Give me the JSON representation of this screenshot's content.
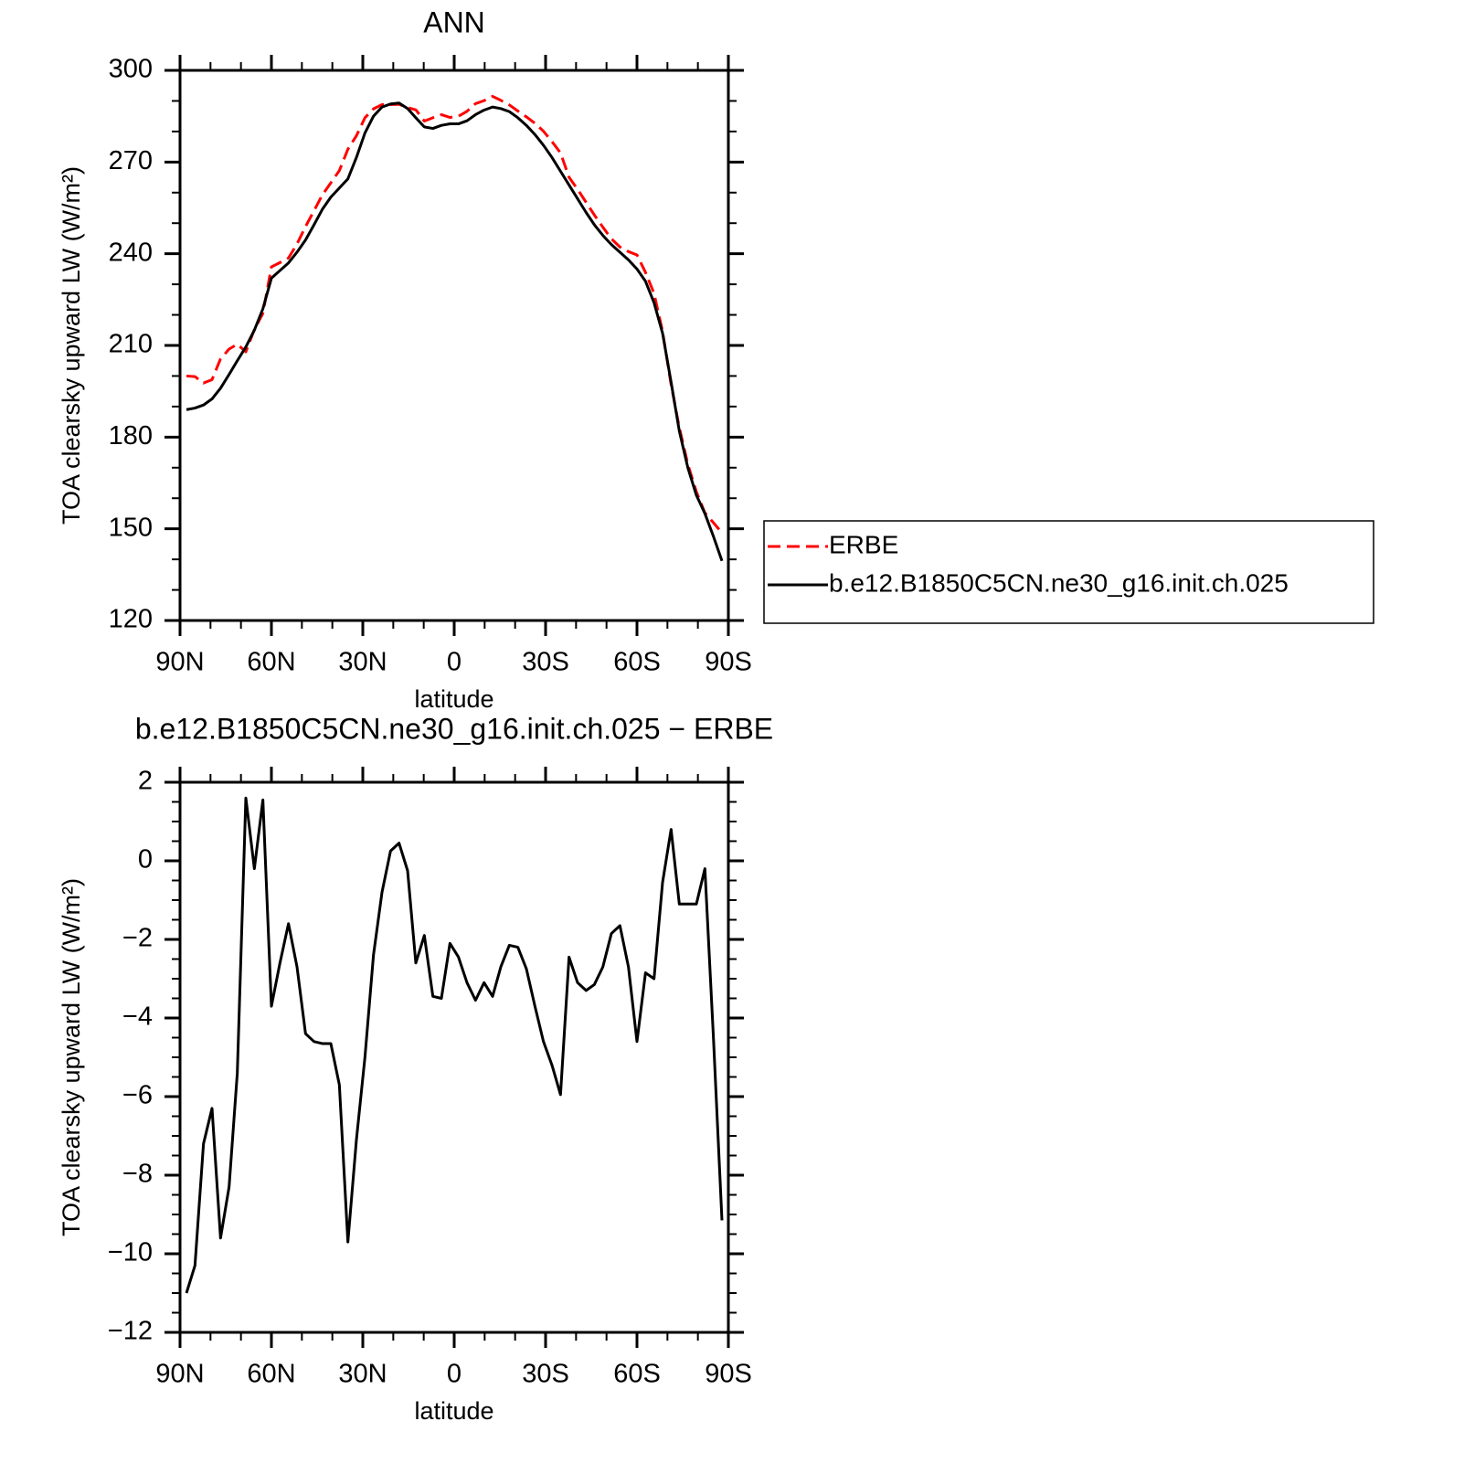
{
  "chart_data": [
    {
      "type": "line",
      "title": "ANN",
      "xlabel": "latitude",
      "ylabel": "TOA clearsky upward LW (W/m²)",
      "x": [
        87.9,
        85.1,
        82.3,
        79.5,
        76.7,
        73.9,
        71.2,
        68.4,
        65.6,
        62.8,
        60,
        57.2,
        54.4,
        51.6,
        48.8,
        46,
        43.3,
        40.5,
        37.7,
        34.9,
        32.1,
        29.3,
        26.5,
        23.7,
        20.9,
        18.1,
        15.3,
        12.6,
        9.8,
        7,
        4.2,
        1.4,
        -1.4,
        -4.2,
        -7,
        -9.8,
        -12.6,
        -15.3,
        -18.1,
        -20.9,
        -23.7,
        -26.5,
        -29.3,
        -32.1,
        -34.9,
        -37.7,
        -40.5,
        -43.3,
        -46,
        -48.8,
        -51.6,
        -54.4,
        -57.2,
        -60,
        -62.8,
        -65.6,
        -68.4,
        -71.2,
        -73.9,
        -76.7,
        -79.5,
        -82.3,
        -85.1,
        -87.9
      ],
      "series": [
        {
          "name": "ERBE",
          "color": "#ff0000",
          "style": "dashed",
          "values": [
            200,
            199.8,
            197.7,
            198.8,
            205.6,
            208.8,
            210.4,
            207.9,
            215.2,
            220.5,
            235.7,
            237.1,
            238.6,
            243.2,
            248.9,
            254.1,
            259.2,
            263.2,
            267.2,
            274.2,
            278.6,
            284.5,
            287.4,
            288.8,
            288.8,
            288.9,
            287.8,
            287.1,
            283.4,
            284.5,
            285.5,
            284.6,
            285,
            286.6,
            289.1,
            290.1,
            291.5,
            290.2,
            288.7,
            286.7,
            284.8,
            282.7,
            280.1,
            276.7,
            273,
            265,
            261.1,
            256.8,
            252.7,
            248.7,
            244.9,
            242.2,
            240.7,
            239.6,
            233.9,
            227,
            214.6,
            197.2,
            183.1,
            171.1,
            162.1,
            155.2,
            152,
            148.7
          ]
        },
        {
          "name": "b.e12.B1850C5CN.ne30_g16.init.ch.025",
          "color": "#000000",
          "style": "solid",
          "values": [
            189,
            189.5,
            190.5,
            192.5,
            196,
            200.5,
            205,
            209.5,
            215,
            222,
            232,
            234.5,
            237,
            240.5,
            244.5,
            249.5,
            254.5,
            258.5,
            261.5,
            264.5,
            271.5,
            279.5,
            285,
            288,
            289,
            289.3,
            287.5,
            284.5,
            281.5,
            281,
            282,
            282.5,
            282.5,
            283.5,
            285.5,
            287,
            288,
            287.5,
            286.5,
            284.5,
            282,
            279,
            275.5,
            271.5,
            267,
            262.5,
            258,
            253.5,
            249.5,
            246,
            243,
            240.5,
            238,
            235,
            231,
            224,
            214,
            198,
            182,
            170,
            161,
            155,
            147.5,
            139.5
          ]
        }
      ],
      "xlim": [
        90,
        -90
      ],
      "xticks": [
        {
          "value": 90,
          "label": "90N"
        },
        {
          "value": 60,
          "label": "60N"
        },
        {
          "value": 30,
          "label": "30N"
        },
        0,
        {
          "value": -30,
          "label": "30S"
        },
        {
          "value": -60,
          "label": "60S"
        },
        {
          "value": -90,
          "label": "90S"
        }
      ],
      "xminorticks": [
        80,
        70,
        50,
        40,
        20,
        10,
        -10,
        -20,
        -40,
        -50,
        -70,
        -80
      ],
      "ylim": [
        120,
        300
      ],
      "yticks": [
        120,
        150,
        180,
        210,
        240,
        270,
        300
      ],
      "yminorticks": [
        130,
        140,
        160,
        170,
        190,
        200,
        220,
        230,
        250,
        260,
        280,
        290
      ],
      "legend": "right"
    },
    {
      "type": "line",
      "title": "b.e12.B1850C5CN.ne30_g16.init.ch.025 − ERBE",
      "xlabel": "latitude",
      "ylabel": "TOA clearsky upward LW (W/m²)",
      "x": [
        87.9,
        85.1,
        82.3,
        79.5,
        76.7,
        73.9,
        71.2,
        68.4,
        65.6,
        62.8,
        60,
        57.2,
        54.4,
        51.6,
        48.8,
        46,
        43.3,
        40.5,
        37.7,
        34.9,
        32.1,
        29.3,
        26.5,
        23.7,
        20.9,
        18.1,
        15.3,
        12.6,
        9.8,
        7,
        4.2,
        1.4,
        -1.4,
        -4.2,
        -7,
        -9.8,
        -12.6,
        -15.3,
        -18.1,
        -20.9,
        -23.7,
        -26.5,
        -29.3,
        -32.1,
        -34.9,
        -37.7,
        -40.5,
        -43.3,
        -46,
        -48.8,
        -51.6,
        -54.4,
        -57.2,
        -60,
        -62.8,
        -65.6,
        -68.4,
        -71.2,
        -73.9,
        -76.7,
        -79.5,
        -82.3,
        -85.1,
        -87.9
      ],
      "values": [
        -11,
        -10.3,
        -7.2,
        -6.3,
        -9.6,
        -8.3,
        -5.4,
        1.6,
        -0.2,
        1.55,
        -3.7,
        -2.6,
        -1.6,
        -2.7,
        -4.4,
        -4.6,
        -4.65,
        -4.65,
        -5.7,
        -9.7,
        -7.1,
        -5,
        -2.4,
        -0.8,
        0.25,
        0.45,
        -0.25,
        -2.6,
        -1.9,
        -3.45,
        -3.5,
        -2.1,
        -2.45,
        -3.1,
        -3.55,
        -3.1,
        -3.45,
        -2.7,
        -2.15,
        -2.2,
        -2.75,
        -3.7,
        -4.6,
        -5.2,
        -5.95,
        -2.45,
        -3.1,
        -3.3,
        -3.15,
        -2.7,
        -1.85,
        -1.65,
        -2.7,
        -4.6,
        -2.85,
        -3,
        -0.55,
        0.8,
        -1.1,
        -1.1,
        -1.1,
        -0.2,
        -4.5,
        -9.15
      ],
      "color": "#000000",
      "xlim": [
        90,
        -90
      ],
      "xticks": [
        {
          "value": 90,
          "label": "90N"
        },
        {
          "value": 60,
          "label": "60N"
        },
        {
          "value": 30,
          "label": "30N"
        },
        0,
        {
          "value": -30,
          "label": "30S"
        },
        {
          "value": -60,
          "label": "60S"
        },
        {
          "value": -90,
          "label": "90S"
        }
      ],
      "xminorticks": [
        80,
        70,
        50,
        40,
        20,
        10,
        -10,
        -20,
        -40,
        -50,
        -70,
        -80
      ],
      "ylim": [
        -12,
        2
      ],
      "yticks": [
        {
          "value": -12,
          "label": "−12"
        },
        {
          "value": -10,
          "label": "−10"
        },
        {
          "value": -8,
          "label": "−8"
        },
        {
          "value": -6,
          "label": "−6"
        },
        {
          "value": -4,
          "label": "−4"
        },
        {
          "value": -2,
          "label": "−2"
        },
        0,
        2
      ],
      "yminorticks": [
        1.5,
        1,
        0.5,
        -0.5,
        -1,
        -1.5,
        -2.5,
        -3,
        -3.5,
        -4.5,
        -5,
        -5.5,
        -6.5,
        -7,
        -7.5,
        -8.5,
        -9,
        -9.5,
        -10.5,
        -11,
        -11.5
      ]
    }
  ]
}
